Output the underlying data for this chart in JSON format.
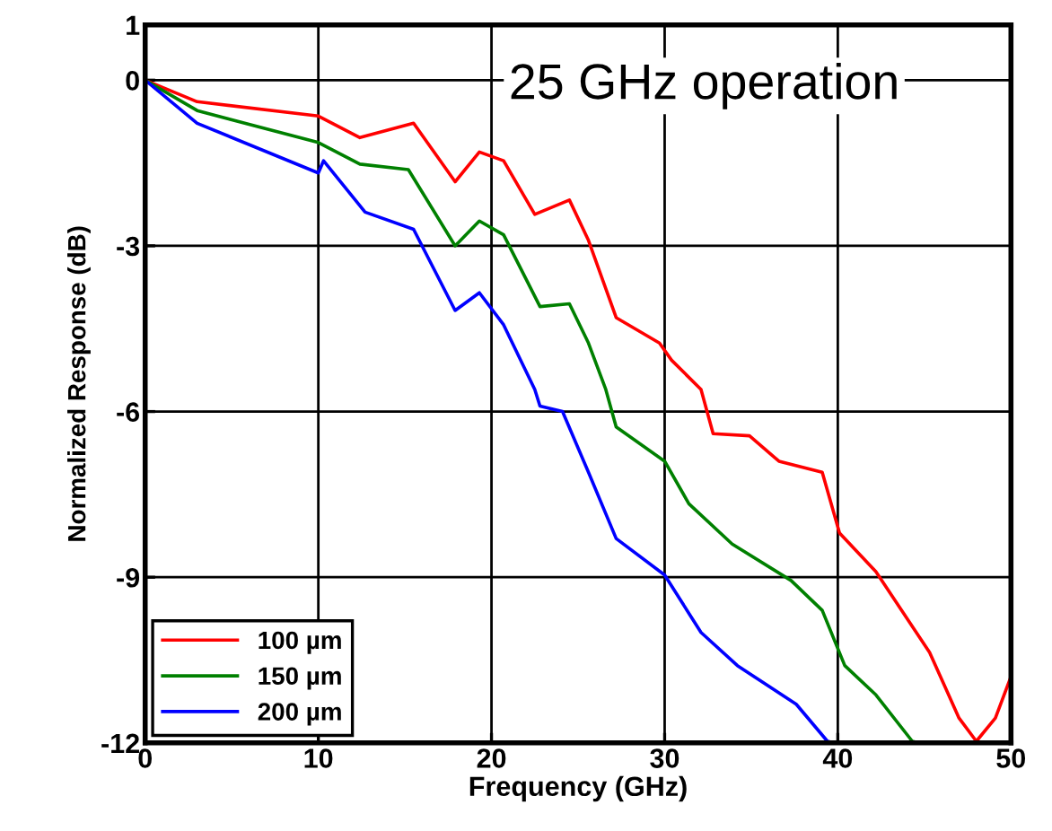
{
  "chart_data": {
    "type": "line",
    "xlabel": "Frequency (GHz)",
    "ylabel": "Normalized Response (dB)",
    "annotations": [
      "25 GHz operation"
    ],
    "xlim": [
      0,
      50
    ],
    "ylim": [
      -12,
      1
    ],
    "xticks": [
      0,
      10,
      20,
      30,
      40,
      50
    ],
    "yticks": [
      -12,
      -9,
      -6,
      -3,
      0,
      1
    ],
    "grid": true,
    "legend": "bottom left",
    "marker": "none",
    "line_style": "solid",
    "series": [
      {
        "name": "100 µm",
        "color": "#ff0000",
        "x": [
          0,
          3,
          10,
          12.4,
          15.5,
          17.9,
          19.3,
          20.7,
          22.5,
          24.5,
          25.6,
          27.2,
          29.7,
          30.4,
          32.1,
          32.8,
          34.9,
          36.6,
          39.1,
          40.1,
          42.2,
          45.3,
          47,
          48,
          49.1,
          50
        ],
        "values": [
          0,
          -0.39,
          -0.65,
          -1.04,
          -0.78,
          -1.84,
          -1.3,
          -1.46,
          -2.43,
          -2.17,
          -2.9,
          -4.3,
          -4.76,
          -5.07,
          -5.6,
          -6.4,
          -6.44,
          -6.9,
          -7.1,
          -8.2,
          -8.9,
          -10.36,
          -11.55,
          -11.97,
          -11.55,
          -10.8
        ]
      },
      {
        "name": "150 µm",
        "color": "#008000",
        "x": [
          0,
          3,
          10,
          12.4,
          15.2,
          17.9,
          19.3,
          20.7,
          22.8,
          24.5,
          25.6,
          26.6,
          27.2,
          30,
          31.4,
          33.9,
          37.3,
          39.1,
          40.4,
          42.2,
          44.3,
          44.7
        ],
        "values": [
          0,
          -0.55,
          -1.13,
          -1.52,
          -1.62,
          -3.0,
          -2.55,
          -2.8,
          -4.1,
          -4.05,
          -4.76,
          -5.6,
          -6.28,
          -6.9,
          -7.67,
          -8.4,
          -9.06,
          -9.6,
          -10.6,
          -11.13,
          -11.97,
          -12
        ]
      },
      {
        "name": "200 µm",
        "color": "#0000ff",
        "x": [
          0,
          3,
          10,
          10.3,
          12.7,
          15.5,
          17.9,
          19.3,
          20.7,
          22.5,
          22.8,
          24.1,
          25.6,
          27.2,
          30,
          32.1,
          34.2,
          37.6,
          39.4,
          39.8
        ],
        "values": [
          0,
          -0.78,
          -1.68,
          -1.46,
          -2.39,
          -2.7,
          -4.17,
          -3.85,
          -4.43,
          -5.6,
          -5.9,
          -6.0,
          -7.1,
          -8.3,
          -8.96,
          -10.0,
          -10.6,
          -11.3,
          -11.97,
          -12
        ]
      }
    ]
  }
}
